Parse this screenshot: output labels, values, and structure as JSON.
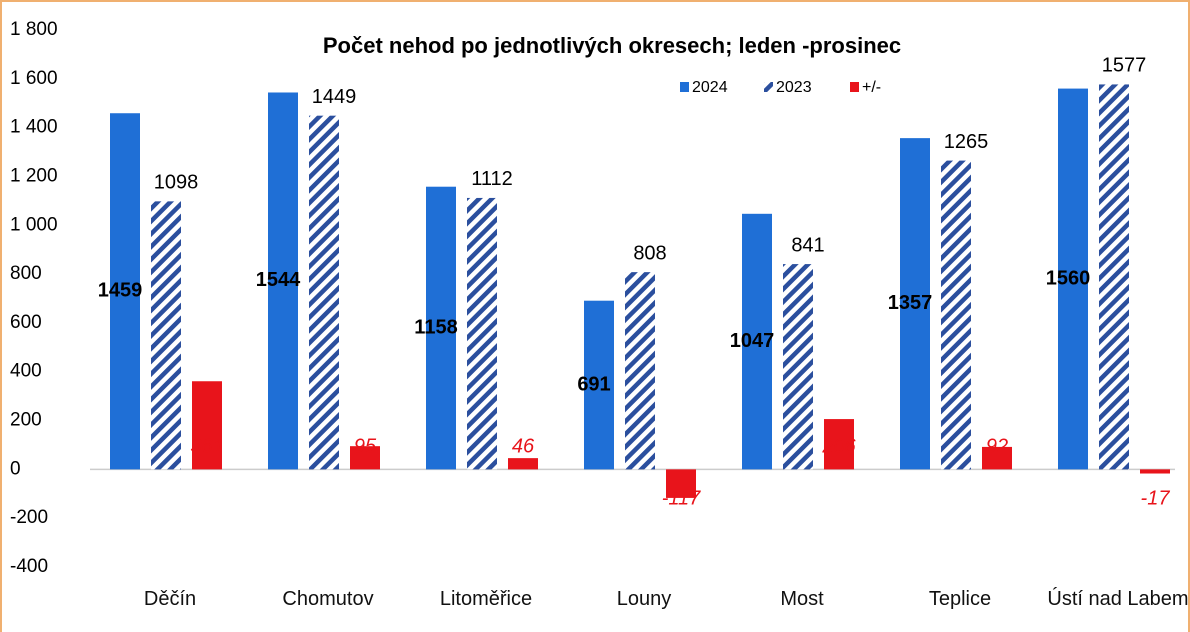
{
  "chart_data": {
    "type": "bar",
    "title": "Počet nehod po jednotlivých okresech; leden -prosinec",
    "categories": [
      "Děčín",
      "Chomutov",
      "Litoměřice",
      "Louny",
      "Most",
      "Teplice",
      "Ústí nad Labem"
    ],
    "series": [
      {
        "name": "2024",
        "color": "#1f6fd6",
        "values": [
          1459,
          1544,
          1158,
          691,
          1047,
          1357,
          1560
        ]
      },
      {
        "name": "2023",
        "color": "#2b4f9e",
        "pattern": "hatch",
        "values": [
          1098,
          1449,
          1112,
          808,
          841,
          1265,
          1577
        ]
      },
      {
        "name": "+/-",
        "color": "#e8141b",
        "values": [
          361,
          95,
          46,
          -117,
          206,
          92,
          -17
        ]
      }
    ],
    "ylim": [
      -400,
      1800
    ],
    "yticks": [
      -400,
      -200,
      0,
      200,
      400,
      600,
      800,
      {
        "value": 1000,
        "label": "1 000"
      },
      {
        "value": 1200,
        "label": "1 200"
      },
      {
        "value": 1400,
        "label": "1 400"
      },
      {
        "value": 1600,
        "label": "1 600"
      },
      {
        "value": 1800,
        "label": "1 800"
      }
    ],
    "legend": "top-right"
  }
}
